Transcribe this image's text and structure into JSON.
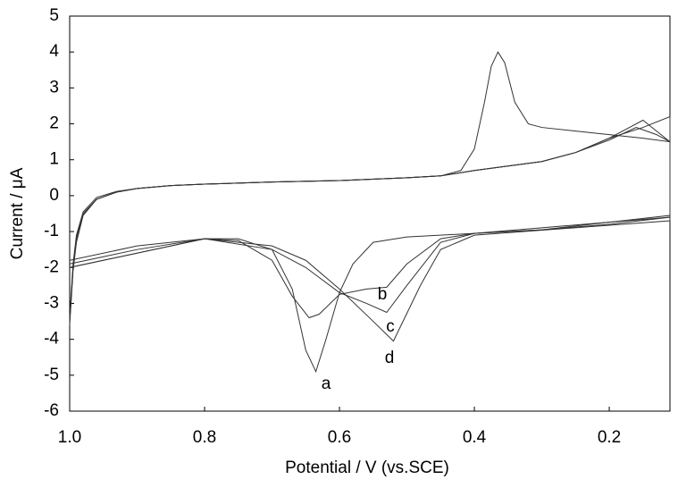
{
  "chart_data": {
    "type": "line",
    "xlabel": "Potential / V (vs.SCE)",
    "ylabel": "Current / μA",
    "xlim": [
      1.0,
      0.11
    ],
    "ylim": [
      -6,
      5
    ],
    "xticks": [
      {
        "value": 1,
        "label": "1.0"
      },
      0.8,
      0.6,
      0.4,
      0.2
    ],
    "yticks": [
      -6,
      -5,
      -4,
      -3,
      -2,
      -1,
      0,
      1,
      2,
      3,
      4,
      5
    ],
    "series": [
      {
        "name": "a",
        "color": "#333333",
        "x": [
          1.0,
          0.995,
          0.99,
          0.98,
          0.96,
          0.93,
          0.9,
          0.85,
          0.8,
          0.7,
          0.6,
          0.5,
          0.45,
          0.42,
          0.4,
          0.385,
          0.375,
          0.365,
          0.355,
          0.34,
          0.32,
          0.3,
          0.25,
          0.2,
          0.15,
          0.11,
          0.11,
          0.2,
          0.3,
          0.4,
          0.5,
          0.55,
          0.58,
          0.6,
          0.62,
          0.635,
          0.65,
          0.67,
          0.7,
          0.75,
          0.8,
          0.9,
          0.95,
          1.0
        ],
        "values": [
          -3.5,
          -2.0,
          -1.2,
          -0.5,
          -0.1,
          0.1,
          0.2,
          0.28,
          0.32,
          0.38,
          0.42,
          0.5,
          0.55,
          0.7,
          1.3,
          2.6,
          3.6,
          4.0,
          3.7,
          2.6,
          2.0,
          1.9,
          1.8,
          1.7,
          1.6,
          1.5,
          -0.6,
          -0.8,
          -0.95,
          -1.05,
          -1.15,
          -1.3,
          -1.9,
          -2.7,
          -4.0,
          -4.9,
          -4.3,
          -2.6,
          -1.5,
          -1.2,
          -1.2,
          -1.5,
          -1.7,
          -1.9
        ]
      },
      {
        "name": "b",
        "color": "#333333",
        "x": [
          1.0,
          0.995,
          0.99,
          0.98,
          0.96,
          0.93,
          0.9,
          0.85,
          0.8,
          0.7,
          0.6,
          0.5,
          0.45,
          0.4,
          0.3,
          0.25,
          0.2,
          0.17,
          0.15,
          0.13,
          0.11,
          0.11,
          0.3,
          0.4,
          0.45,
          0.5,
          0.53,
          0.56,
          0.6,
          0.63,
          0.645,
          0.67,
          0.7,
          0.75,
          0.8,
          0.9,
          1.0
        ],
        "values": [
          -3.4,
          -1.9,
          -1.1,
          -0.45,
          -0.05,
          0.12,
          0.2,
          0.28,
          0.32,
          0.38,
          0.42,
          0.5,
          0.55,
          0.7,
          0.95,
          1.2,
          1.6,
          1.9,
          2.1,
          1.8,
          1.5,
          -0.55,
          -0.95,
          -1.05,
          -1.2,
          -1.9,
          -2.55,
          -2.6,
          -2.75,
          -3.3,
          -3.4,
          -2.8,
          -1.8,
          -1.25,
          -1.2,
          -1.4,
          -1.8
        ]
      },
      {
        "name": "c",
        "color": "#333333",
        "x": [
          1.0,
          0.995,
          0.99,
          0.98,
          0.96,
          0.93,
          0.9,
          0.85,
          0.8,
          0.7,
          0.6,
          0.5,
          0.45,
          0.4,
          0.3,
          0.25,
          0.2,
          0.16,
          0.13,
          0.11,
          0.11,
          0.4,
          0.45,
          0.5,
          0.53,
          0.56,
          0.6,
          0.65,
          0.7,
          0.8,
          1.0
        ],
        "values": [
          -3.6,
          -2.1,
          -1.3,
          -0.55,
          -0.1,
          0.1,
          0.2,
          0.28,
          0.32,
          0.38,
          0.42,
          0.5,
          0.55,
          0.7,
          0.95,
          1.2,
          1.55,
          1.9,
          1.7,
          1.5,
          -0.6,
          -1.05,
          -1.3,
          -2.5,
          -3.25,
          -3.0,
          -2.7,
          -2.0,
          -1.5,
          -1.2,
          -2.0
        ]
      },
      {
        "name": "d",
        "color": "#333333",
        "x": [
          1.0,
          0.995,
          0.99,
          0.98,
          0.96,
          0.93,
          0.9,
          0.85,
          0.8,
          0.7,
          0.6,
          0.5,
          0.45,
          0.4,
          0.3,
          0.25,
          0.2,
          0.15,
          0.11,
          0.11,
          0.4,
          0.45,
          0.48,
          0.52,
          0.55,
          0.6,
          0.65,
          0.7,
          0.8,
          1.0
        ],
        "values": [
          -3.5,
          -2.0,
          -1.2,
          -0.5,
          -0.1,
          0.1,
          0.2,
          0.28,
          0.32,
          0.38,
          0.42,
          0.5,
          0.55,
          0.7,
          0.95,
          1.2,
          1.6,
          1.9,
          2.2,
          -0.7,
          -1.1,
          -1.5,
          -2.5,
          -4.05,
          -3.5,
          -2.6,
          -1.8,
          -1.4,
          -1.2,
          -2.0
        ]
      }
    ]
  }
}
